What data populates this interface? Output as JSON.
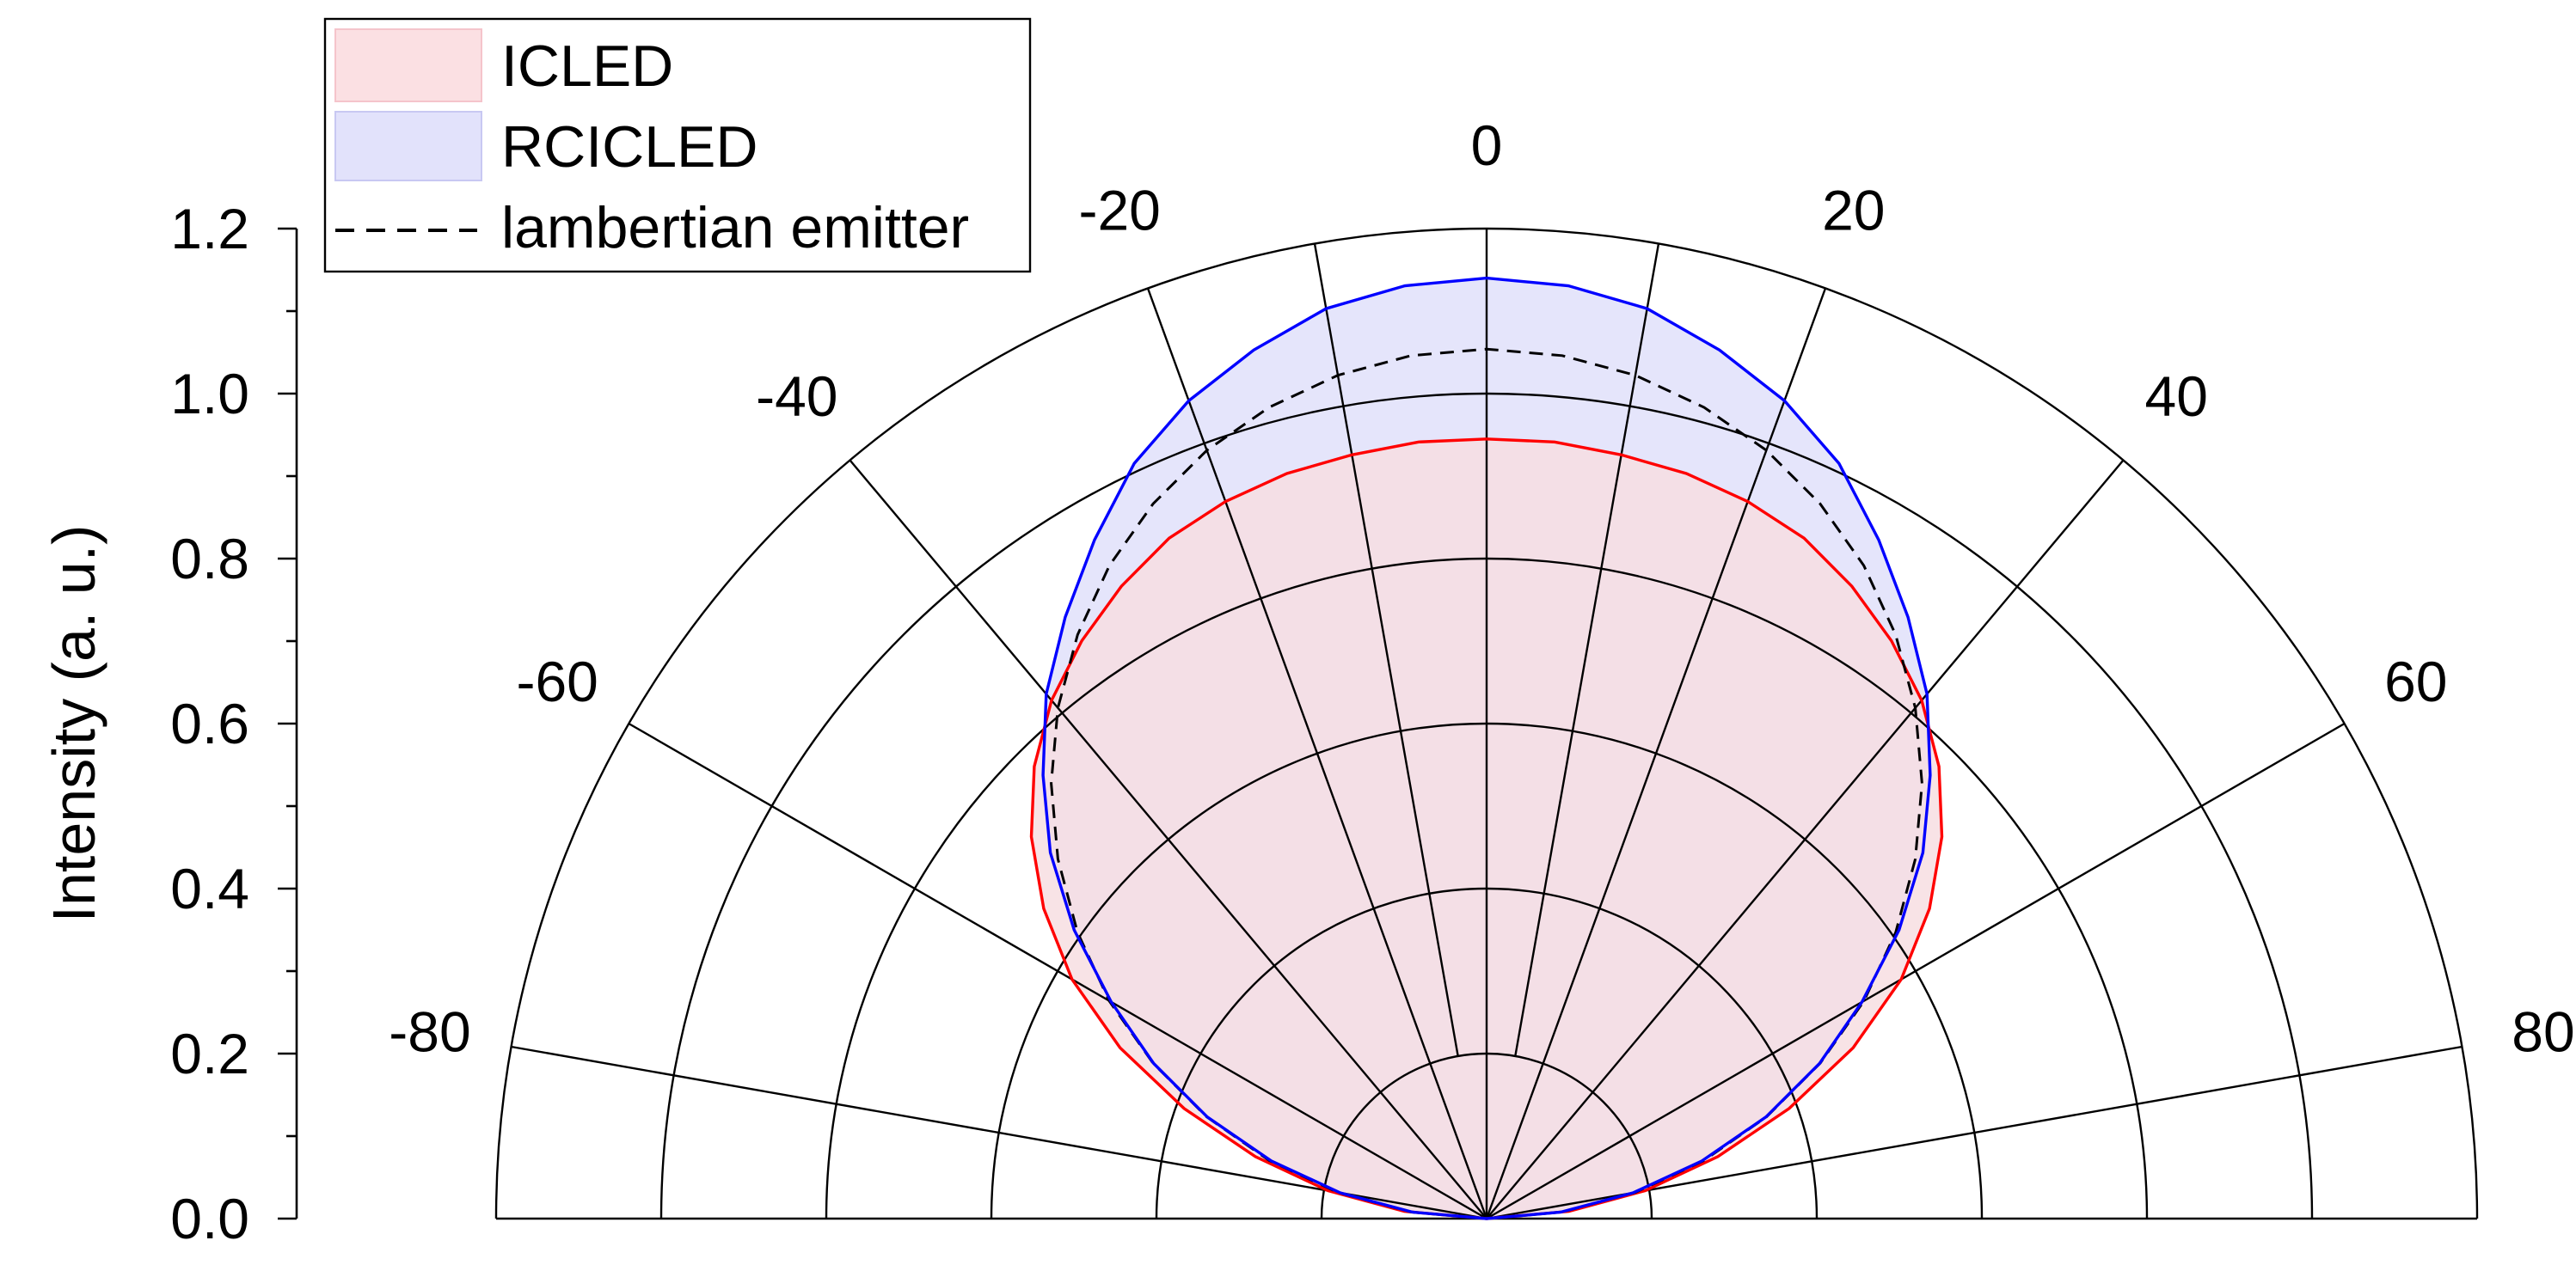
{
  "chart_data": {
    "type": "polar",
    "ylabel": "Intensity (a. u.)",
    "ylim": [
      0.0,
      1.2
    ],
    "y_ticks": [
      "0.0",
      "0.2",
      "0.4",
      "0.6",
      "0.8",
      "1.0",
      "1.2"
    ],
    "angle_range_deg": [
      -90,
      90
    ],
    "angle_ticks": [
      "-80",
      "-60",
      "-40",
      "-20",
      "0",
      "20",
      "40",
      "60",
      "80"
    ],
    "radial_grid": [
      0.2,
      0.4,
      0.6,
      0.8,
      1.0,
      1.2
    ],
    "spoke_angles_deg": [
      -80,
      -60,
      -40,
      -20,
      -10,
      0,
      10,
      20,
      40,
      60,
      80
    ],
    "grid": true,
    "legend_position": "top-left",
    "legend": [
      {
        "label": "ICLED",
        "style": "fill",
        "color": "#f8d7dc"
      },
      {
        "label": "RCICLED",
        "style": "fill",
        "color": "#dcdcf8"
      },
      {
        "label": "lambertian emitter",
        "style": "dashed-line",
        "color": "#000000"
      }
    ],
    "series": [
      {
        "name": "RCICLED",
        "line_color": "#0000ff",
        "fill_color": "#dfdffa",
        "theta_deg": [
          -90,
          -85,
          -80,
          -75,
          -70,
          -65,
          -60,
          -55,
          -50,
          -45,
          -40,
          -35,
          -30,
          -25,
          -20,
          -15,
          -10,
          -5,
          0,
          5,
          10,
          15,
          20,
          25,
          30,
          35,
          40,
          45,
          50,
          55,
          60,
          65,
          70,
          75,
          80,
          85,
          90
        ],
        "r": [
          0.0,
          0.09,
          0.18,
          0.27,
          0.36,
          0.445,
          0.525,
          0.61,
          0.69,
          0.76,
          0.83,
          0.89,
          0.95,
          1.01,
          1.055,
          1.09,
          1.12,
          1.135,
          1.14,
          1.135,
          1.12,
          1.09,
          1.055,
          1.01,
          0.95,
          0.89,
          0.83,
          0.76,
          0.69,
          0.61,
          0.525,
          0.445,
          0.36,
          0.27,
          0.18,
          0.09,
          0.0
        ]
      },
      {
        "name": "ICLED",
        "line_color": "#ff0000",
        "fill_color": "#f6dde1",
        "theta_deg": [
          -90,
          -85,
          -80,
          -75,
          -70,
          -65,
          -60,
          -55,
          -50,
          -45,
          -40,
          -35,
          -30,
          -25,
          -20,
          -15,
          -10,
          -5,
          0,
          5,
          10,
          15,
          20,
          25,
          30,
          35,
          40,
          45,
          50,
          55,
          60,
          65,
          70,
          75,
          80,
          85,
          90
        ],
        "r": [
          0.0,
          0.1,
          0.195,
          0.29,
          0.39,
          0.49,
          0.58,
          0.655,
          0.72,
          0.775,
          0.82,
          0.855,
          0.885,
          0.91,
          0.925,
          0.935,
          0.94,
          0.945,
          0.945,
          0.945,
          0.94,
          0.935,
          0.925,
          0.91,
          0.885,
          0.855,
          0.82,
          0.775,
          0.72,
          0.655,
          0.58,
          0.49,
          0.39,
          0.29,
          0.195,
          0.1,
          0.0
        ]
      },
      {
        "name": "lambertian emitter",
        "line_color": "#000000",
        "dashed": true,
        "theta_deg": [
          -90,
          -85,
          -80,
          -75,
          -70,
          -65,
          -60,
          -55,
          -50,
          -45,
          -40,
          -35,
          -30,
          -25,
          -20,
          -15,
          -10,
          -5,
          0,
          5,
          10,
          15,
          20,
          25,
          30,
          35,
          40,
          45,
          50,
          55,
          60,
          65,
          70,
          75,
          80,
          85,
          90
        ],
        "r": [
          0.0,
          0.092,
          0.183,
          0.273,
          0.361,
          0.446,
          0.528,
          0.605,
          0.678,
          0.746,
          0.808,
          0.864,
          0.914,
          0.956,
          0.991,
          1.018,
          1.038,
          1.05,
          1.054,
          1.05,
          1.038,
          1.018,
          0.991,
          0.956,
          0.914,
          0.864,
          0.808,
          0.746,
          0.678,
          0.605,
          0.528,
          0.446,
          0.361,
          0.273,
          0.183,
          0.092,
          0.0
        ]
      }
    ]
  }
}
